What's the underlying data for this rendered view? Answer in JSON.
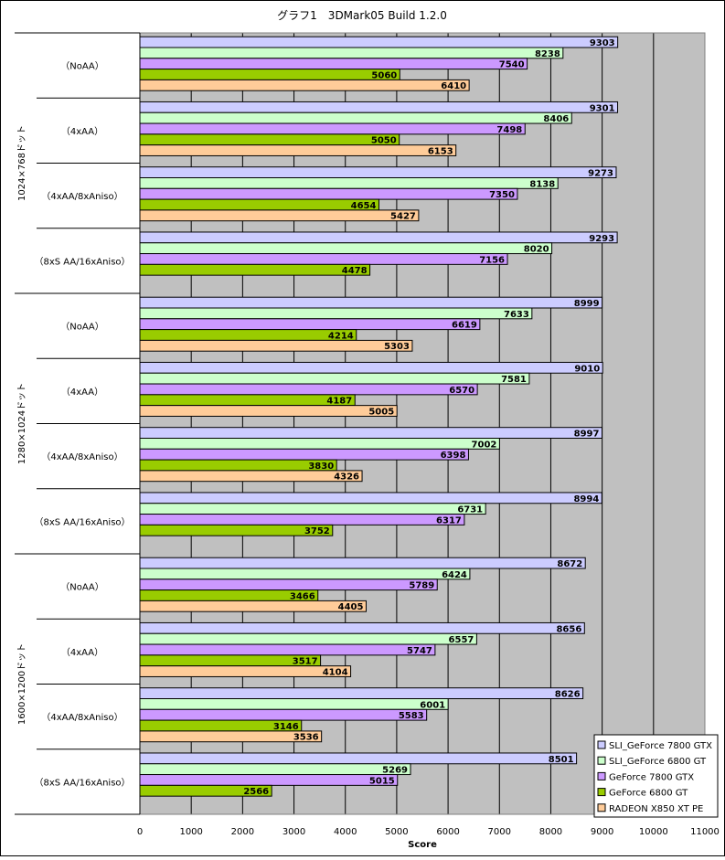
{
  "chart_data": {
    "type": "bar",
    "orientation": "horizontal",
    "title": "グラフ1　3DMark05  Build 1.2.0",
    "xlabel": "Score",
    "xlim": [
      0,
      11000
    ],
    "xticks": [
      0,
      1000,
      2000,
      3000,
      4000,
      5000,
      6000,
      7000,
      8000,
      9000,
      10000,
      11000
    ],
    "grid": true,
    "legend_position": "bottom-right",
    "resolutions": [
      "1024×768ドット",
      "1280×1024ドット",
      "1600×1200ドット"
    ],
    "categories": [
      "（NoAA）",
      "（4xAA）",
      "（4xAA/8xAniso）",
      "（8xS AA/16xAniso）",
      "（NoAA）",
      "（4xAA）",
      "（4xAA/8xAniso）",
      "（8xS AA/16xAniso）",
      "（NoAA）",
      "（4xAA）",
      "（4xAA/8xAniso）",
      "（8xS AA/16xAniso）"
    ],
    "series": [
      {
        "name": "SLI_GeForce 7800 GTX",
        "color": "#ccccff",
        "values": [
          9303,
          9301,
          9273,
          9293,
          8999,
          9010,
          8997,
          8994,
          8672,
          8656,
          8626,
          8501
        ]
      },
      {
        "name": "SLI_GeForce 6800 GT",
        "color": "#ccffcc",
        "values": [
          8238,
          8406,
          8138,
          8020,
          7633,
          7581,
          7002,
          6731,
          6424,
          6557,
          6001,
          5269
        ]
      },
      {
        "name": "GeForce 7800 GTX",
        "color": "#cc99ff",
        "values": [
          7540,
          7498,
          7350,
          7156,
          6619,
          6570,
          6398,
          6317,
          5789,
          5747,
          5583,
          5015
        ]
      },
      {
        "name": "GeForce 6800 GT",
        "color": "#99cc00",
        "values": [
          5060,
          5050,
          4654,
          4478,
          4214,
          4187,
          3830,
          3752,
          3466,
          3517,
          3146,
          2566
        ]
      },
      {
        "name": "RADEON X850 XT PE",
        "color": "#ffcc99",
        "values": [
          6410,
          6153,
          5427,
          null,
          5303,
          5005,
          4326,
          null,
          4405,
          4104,
          3536,
          null
        ]
      }
    ]
  }
}
